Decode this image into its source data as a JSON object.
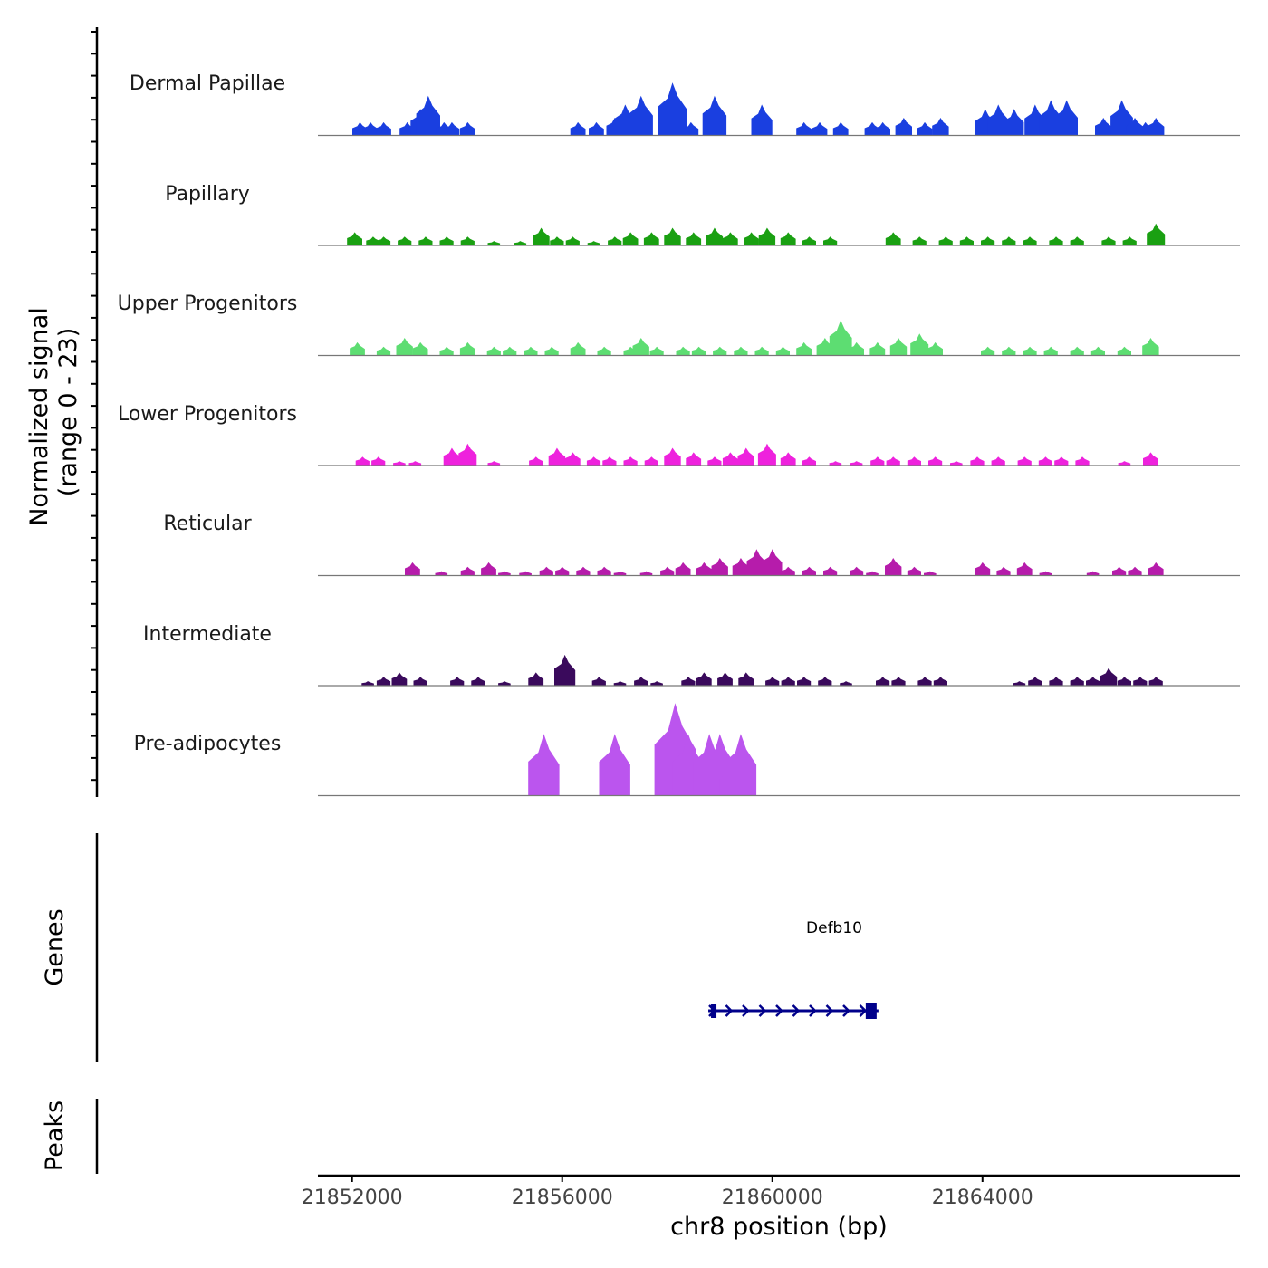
{
  "chart_data": {
    "type": "area",
    "title": "",
    "signal_ylabel_line1": "Normalized signal",
    "signal_ylabel_line2": "(range 0 - 23)",
    "ylim": [
      0,
      23
    ],
    "xlabel": "chr8 position (bp)",
    "xlim": [
      21851350,
      21868900
    ],
    "x_ticks": [
      21852000,
      21856000,
      21860000,
      21864000
    ],
    "x_tick_labels": [
      "21852000",
      "21856000",
      "21860000",
      "21864000"
    ],
    "tracks": [
      {
        "name": "Dermal Papillae",
        "color": "#1a3fe0",
        "peaks": [
          [
            21852150,
            3
          ],
          [
            21852350,
            3
          ],
          [
            21852600,
            3
          ],
          [
            21853050,
            3
          ],
          [
            21853300,
            6
          ],
          [
            21853450,
            9
          ],
          [
            21853750,
            3
          ],
          [
            21853900,
            3
          ],
          [
            21854200,
            3
          ],
          [
            21856300,
            3
          ],
          [
            21856650,
            3
          ],
          [
            21857000,
            4
          ],
          [
            21857200,
            7
          ],
          [
            21857500,
            9
          ],
          [
            21858100,
            12
          ],
          [
            21858450,
            3
          ],
          [
            21858900,
            9
          ],
          [
            21859800,
            7
          ],
          [
            21860600,
            3
          ],
          [
            21860900,
            3
          ],
          [
            21861300,
            3
          ],
          [
            21861900,
            3
          ],
          [
            21862100,
            3
          ],
          [
            21862500,
            4
          ],
          [
            21862900,
            3
          ],
          [
            21863200,
            4
          ],
          [
            21864050,
            6
          ],
          [
            21864300,
            7
          ],
          [
            21864600,
            6
          ],
          [
            21865000,
            7
          ],
          [
            21865300,
            8
          ],
          [
            21865600,
            8
          ],
          [
            21866300,
            4
          ],
          [
            21866650,
            8
          ],
          [
            21866900,
            4
          ],
          [
            21867100,
            3
          ],
          [
            21867300,
            4
          ]
        ]
      },
      {
        "name": "Papillary",
        "color": "#1aa012",
        "peaks": [
          [
            21852050,
            3
          ],
          [
            21852400,
            2
          ],
          [
            21852600,
            2
          ],
          [
            21853000,
            2
          ],
          [
            21853400,
            2
          ],
          [
            21853800,
            2
          ],
          [
            21854200,
            2
          ],
          [
            21854700,
            1
          ],
          [
            21855200,
            1
          ],
          [
            21855600,
            4
          ],
          [
            21855900,
            2
          ],
          [
            21856200,
            2
          ],
          [
            21856600,
            1
          ],
          [
            21857000,
            2
          ],
          [
            21857300,
            3
          ],
          [
            21857700,
            3
          ],
          [
            21858100,
            4
          ],
          [
            21858500,
            3
          ],
          [
            21858900,
            4
          ],
          [
            21859200,
            3
          ],
          [
            21859600,
            3
          ],
          [
            21859900,
            4
          ],
          [
            21860300,
            3
          ],
          [
            21860700,
            2
          ],
          [
            21861100,
            2
          ],
          [
            21862300,
            3
          ],
          [
            21862800,
            2
          ],
          [
            21863300,
            2
          ],
          [
            21863700,
            2
          ],
          [
            21864100,
            2
          ],
          [
            21864500,
            2
          ],
          [
            21864900,
            2
          ],
          [
            21865400,
            2
          ],
          [
            21865800,
            2
          ],
          [
            21866400,
            2
          ],
          [
            21866800,
            2
          ],
          [
            21867300,
            5
          ]
        ]
      },
      {
        "name": "Upper Progenitors",
        "color": "#5ddd72",
        "peaks": [
          [
            21852100,
            3
          ],
          [
            21852600,
            2
          ],
          [
            21853000,
            4
          ],
          [
            21853300,
            3
          ],
          [
            21853800,
            2
          ],
          [
            21854200,
            3
          ],
          [
            21854700,
            2
          ],
          [
            21855000,
            2
          ],
          [
            21855400,
            2
          ],
          [
            21855800,
            2
          ],
          [
            21856300,
            3
          ],
          [
            21856800,
            2
          ],
          [
            21857300,
            2
          ],
          [
            21857500,
            4
          ],
          [
            21857800,
            2
          ],
          [
            21858300,
            2
          ],
          [
            21858600,
            2
          ],
          [
            21859000,
            2
          ],
          [
            21859400,
            2
          ],
          [
            21859800,
            2
          ],
          [
            21860200,
            2
          ],
          [
            21860600,
            3
          ],
          [
            21861000,
            4
          ],
          [
            21861300,
            8
          ],
          [
            21861600,
            3
          ],
          [
            21862000,
            3
          ],
          [
            21862400,
            4
          ],
          [
            21862800,
            5
          ],
          [
            21863100,
            3
          ],
          [
            21864100,
            2
          ],
          [
            21864500,
            2
          ],
          [
            21864900,
            2
          ],
          [
            21865300,
            2
          ],
          [
            21865800,
            2
          ],
          [
            21866200,
            2
          ],
          [
            21866700,
            2
          ],
          [
            21867200,
            4
          ]
        ]
      },
      {
        "name": "Lower Progenitors",
        "color": "#ee22dd",
        "peaks": [
          [
            21852200,
            2
          ],
          [
            21852500,
            2
          ],
          [
            21852900,
            1
          ],
          [
            21853200,
            1
          ],
          [
            21853900,
            4
          ],
          [
            21854200,
            5
          ],
          [
            21854700,
            1
          ],
          [
            21855500,
            2
          ],
          [
            21855900,
            4
          ],
          [
            21856200,
            3
          ],
          [
            21856600,
            2
          ],
          [
            21856900,
            2
          ],
          [
            21857300,
            2
          ],
          [
            21857700,
            2
          ],
          [
            21858100,
            4
          ],
          [
            21858500,
            3
          ],
          [
            21858900,
            2
          ],
          [
            21859200,
            3
          ],
          [
            21859500,
            4
          ],
          [
            21859900,
            5
          ],
          [
            21860300,
            3
          ],
          [
            21860700,
            2
          ],
          [
            21861200,
            1
          ],
          [
            21861600,
            1
          ],
          [
            21862000,
            2
          ],
          [
            21862300,
            2
          ],
          [
            21862700,
            2
          ],
          [
            21863100,
            2
          ],
          [
            21863500,
            1
          ],
          [
            21863900,
            2
          ],
          [
            21864300,
            2
          ],
          [
            21864800,
            2
          ],
          [
            21865200,
            2
          ],
          [
            21865500,
            2
          ],
          [
            21865900,
            2
          ],
          [
            21866700,
            1
          ],
          [
            21867200,
            3
          ]
        ]
      },
      {
        "name": "Reticular",
        "color": "#b61cab",
        "peaks": [
          [
            21853150,
            3
          ],
          [
            21853700,
            1
          ],
          [
            21854200,
            2
          ],
          [
            21854600,
            3
          ],
          [
            21854900,
            1
          ],
          [
            21855300,
            1
          ],
          [
            21855700,
            2
          ],
          [
            21856000,
            2
          ],
          [
            21856400,
            2
          ],
          [
            21856800,
            2
          ],
          [
            21857100,
            1
          ],
          [
            21857600,
            1
          ],
          [
            21858000,
            2
          ],
          [
            21858300,
            3
          ],
          [
            21858700,
            3
          ],
          [
            21859000,
            4
          ],
          [
            21859400,
            4
          ],
          [
            21859700,
            6
          ],
          [
            21860000,
            6
          ],
          [
            21860300,
            2
          ],
          [
            21860700,
            2
          ],
          [
            21861100,
            2
          ],
          [
            21861600,
            2
          ],
          [
            21861900,
            1
          ],
          [
            21862300,
            4
          ],
          [
            21862700,
            2
          ],
          [
            21863000,
            1
          ],
          [
            21864000,
            3
          ],
          [
            21864400,
            2
          ],
          [
            21864800,
            3
          ],
          [
            21865200,
            1
          ],
          [
            21866100,
            1
          ],
          [
            21866600,
            2
          ],
          [
            21866900,
            2
          ],
          [
            21867300,
            3
          ]
        ]
      },
      {
        "name": "Intermediate",
        "color": "#3a0a5c",
        "peaks": [
          [
            21852300,
            1
          ],
          [
            21852600,
            2
          ],
          [
            21852900,
            3
          ],
          [
            21853300,
            2
          ],
          [
            21854000,
            2
          ],
          [
            21854400,
            2
          ],
          [
            21854900,
            1
          ],
          [
            21855500,
            3
          ],
          [
            21856050,
            7
          ],
          [
            21856700,
            2
          ],
          [
            21857100,
            1
          ],
          [
            21857500,
            2
          ],
          [
            21857800,
            1
          ],
          [
            21858400,
            2
          ],
          [
            21858700,
            3
          ],
          [
            21859100,
            3
          ],
          [
            21859500,
            3
          ],
          [
            21860000,
            2
          ],
          [
            21860300,
            2
          ],
          [
            21860600,
            2
          ],
          [
            21861000,
            2
          ],
          [
            21861400,
            1
          ],
          [
            21862100,
            2
          ],
          [
            21862400,
            2
          ],
          [
            21862900,
            2
          ],
          [
            21863200,
            2
          ],
          [
            21864700,
            1
          ],
          [
            21865000,
            2
          ],
          [
            21865400,
            2
          ],
          [
            21865800,
            2
          ],
          [
            21866100,
            2
          ],
          [
            21866400,
            4
          ],
          [
            21866700,
            2
          ],
          [
            21867000,
            2
          ],
          [
            21867300,
            2
          ]
        ]
      },
      {
        "name": "Pre-adipocytes",
        "color": "#bb55ee",
        "peaks": [
          [
            21855650,
            14
          ],
          [
            21857000,
            14
          ],
          [
            21858000,
            7
          ],
          [
            21858150,
            21
          ],
          [
            21858400,
            14
          ],
          [
            21858800,
            14
          ],
          [
            21859000,
            14
          ],
          [
            21859200,
            7
          ],
          [
            21859400,
            14
          ]
        ]
      }
    ],
    "genes_label": "Genes",
    "peaks_label": "Peaks",
    "gene": {
      "name": "Defb10",
      "start": 21858850,
      "end": 21861950,
      "strand": "+",
      "color": "#00008b"
    }
  }
}
